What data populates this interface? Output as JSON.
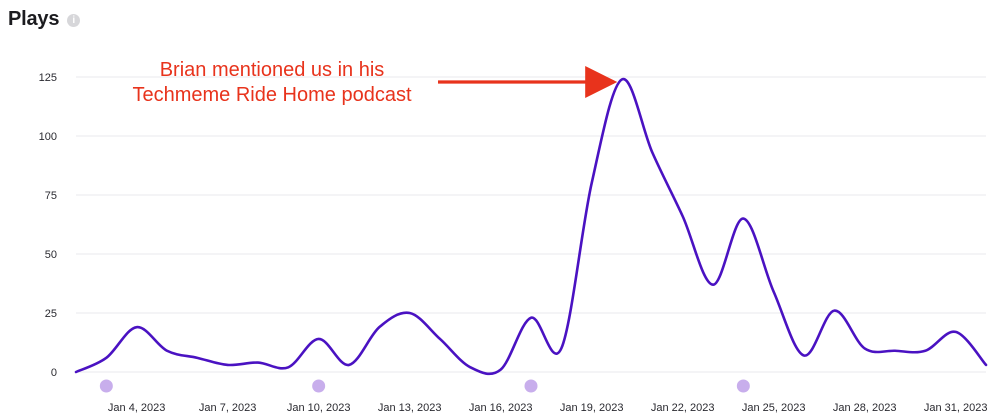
{
  "header": {
    "title": "Plays",
    "info_icon": "info-icon"
  },
  "colors": {
    "line": "#4a12c2",
    "annotation": "#e8331c",
    "marker": "#c8aeec",
    "grid": "#e9e9ec"
  },
  "annotation": {
    "line1": "Brian mentioned us in his",
    "line2": "Techmeme Ride Home podcast",
    "points_to": {
      "x": "2023-01-20",
      "y": 124
    }
  },
  "chart_data": {
    "type": "line",
    "title": "Plays",
    "xlabel": "",
    "ylabel": "",
    "ylim": [
      0,
      125
    ],
    "yticks": [
      0,
      25,
      50,
      75,
      100,
      125
    ],
    "xlim": [
      "2023-01-02",
      "2023-02-01"
    ],
    "xticks": [
      "Jan 4, 2023",
      "Jan 7, 2023",
      "Jan 10, 2023",
      "Jan 13, 2023",
      "Jan 16, 2023",
      "Jan 19, 2023",
      "Jan 22, 2023",
      "Jan 25, 2023",
      "Jan 28, 2023",
      "Jan 31, 2023"
    ],
    "grid": true,
    "series": [
      {
        "x": [
          "2023-01-02",
          "2023-01-03",
          "2023-01-04",
          "2023-01-05",
          "2023-01-06",
          "2023-01-07",
          "2023-01-08",
          "2023-01-09",
          "2023-01-10",
          "2023-01-11",
          "2023-01-12",
          "2023-01-13",
          "2023-01-14",
          "2023-01-15",
          "2023-01-16",
          "2023-01-17",
          "2023-01-18",
          "2023-01-19",
          "2023-01-20",
          "2023-01-21",
          "2023-01-22",
          "2023-01-23",
          "2023-01-24",
          "2023-01-25",
          "2023-01-26",
          "2023-01-27",
          "2023-01-28",
          "2023-01-29",
          "2023-01-30",
          "2023-01-31",
          "2023-02-01"
        ],
        "values": [
          0,
          6,
          19,
          9,
          6,
          3,
          4,
          2,
          14,
          3,
          19,
          25,
          14,
          2,
          1,
          23,
          10,
          80,
          124,
          93,
          66,
          37,
          65,
          34,
          7,
          26,
          10,
          9,
          9,
          17,
          3
        ]
      }
    ],
    "markers": {
      "x": [
        "2023-01-03",
        "2023-01-10",
        "2023-01-17",
        "2023-01-24"
      ]
    }
  }
}
